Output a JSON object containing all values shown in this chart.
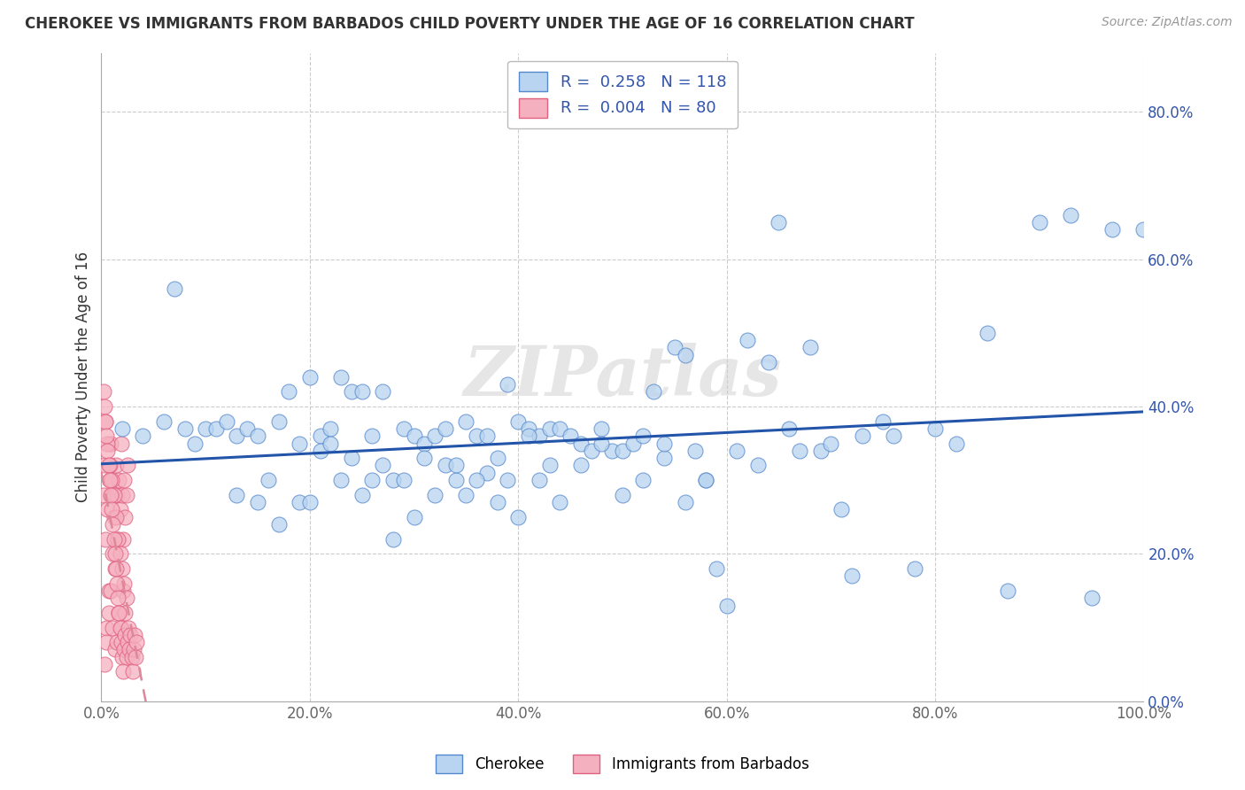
{
  "title": "CHEROKEE VS IMMIGRANTS FROM BARBADOS CHILD POVERTY UNDER THE AGE OF 16 CORRELATION CHART",
  "source": "Source: ZipAtlas.com",
  "ylabel": "Child Poverty Under the Age of 16",
  "watermark": "ZIPatlas",
  "xlim": [
    0.0,
    1.0
  ],
  "ylim": [
    0.0,
    0.88
  ],
  "yticks": [
    0.0,
    0.2,
    0.4,
    0.6,
    0.8
  ],
  "xticks": [
    0.0,
    0.2,
    0.4,
    0.6,
    0.8,
    1.0
  ],
  "cherokee_color": "#b8d4f0",
  "barbados_color": "#f5b0c0",
  "cherokee_edge": "#5588cc",
  "barbados_edge": "#e06080",
  "cherokee_R": 0.258,
  "cherokee_N": 118,
  "barbados_R": 0.004,
  "barbados_N": 80,
  "cherokee_line_color": "#2255aa",
  "barbados_line_color": "#dd8899",
  "legend_cherokee_label": "Cherokee",
  "legend_barbados_label": "Immigrants from Barbados",
  "cherokee_x": [
    0.02,
    0.04,
    0.06,
    0.07,
    0.08,
    0.09,
    0.1,
    0.11,
    0.12,
    0.13,
    0.14,
    0.15,
    0.16,
    0.17,
    0.18,
    0.19,
    0.2,
    0.21,
    0.22,
    0.23,
    0.24,
    0.25,
    0.26,
    0.27,
    0.28,
    0.29,
    0.3,
    0.31,
    0.32,
    0.33,
    0.34,
    0.35,
    0.36,
    0.37,
    0.38,
    0.39,
    0.4,
    0.41,
    0.42,
    0.43,
    0.44,
    0.45,
    0.46,
    0.47,
    0.48,
    0.49,
    0.5,
    0.51,
    0.52,
    0.53,
    0.54,
    0.55,
    0.56,
    0.57,
    0.58,
    0.59,
    0.6,
    0.61,
    0.62,
    0.63,
    0.64,
    0.65,
    0.66,
    0.67,
    0.68,
    0.69,
    0.7,
    0.71,
    0.72,
    0.73,
    0.75,
    0.76,
    0.78,
    0.8,
    0.82,
    0.85,
    0.87,
    0.9,
    0.93,
    0.95,
    0.97,
    1.0,
    0.13,
    0.15,
    0.17,
    0.19,
    0.21,
    0.23,
    0.25,
    0.27,
    0.29,
    0.31,
    0.33,
    0.35,
    0.37,
    0.39,
    0.41,
    0.43,
    0.2,
    0.22,
    0.24,
    0.26,
    0.28,
    0.3,
    0.32,
    0.34,
    0.36,
    0.38,
    0.4,
    0.42,
    0.44,
    0.46,
    0.48,
    0.5,
    0.52,
    0.54,
    0.56,
    0.58
  ],
  "cherokee_y": [
    0.37,
    0.36,
    0.38,
    0.56,
    0.37,
    0.35,
    0.37,
    0.37,
    0.38,
    0.36,
    0.37,
    0.36,
    0.3,
    0.38,
    0.42,
    0.35,
    0.44,
    0.36,
    0.37,
    0.44,
    0.42,
    0.42,
    0.36,
    0.42,
    0.3,
    0.37,
    0.36,
    0.35,
    0.36,
    0.37,
    0.3,
    0.38,
    0.36,
    0.36,
    0.33,
    0.43,
    0.38,
    0.37,
    0.36,
    0.37,
    0.37,
    0.36,
    0.35,
    0.34,
    0.37,
    0.34,
    0.34,
    0.35,
    0.36,
    0.42,
    0.33,
    0.48,
    0.47,
    0.34,
    0.3,
    0.18,
    0.13,
    0.34,
    0.49,
    0.32,
    0.46,
    0.65,
    0.37,
    0.34,
    0.48,
    0.34,
    0.35,
    0.26,
    0.17,
    0.36,
    0.38,
    0.36,
    0.18,
    0.37,
    0.35,
    0.5,
    0.15,
    0.65,
    0.66,
    0.14,
    0.64,
    0.64,
    0.28,
    0.27,
    0.24,
    0.27,
    0.34,
    0.3,
    0.28,
    0.32,
    0.3,
    0.33,
    0.32,
    0.28,
    0.31,
    0.3,
    0.36,
    0.32,
    0.27,
    0.35,
    0.33,
    0.3,
    0.22,
    0.25,
    0.28,
    0.32,
    0.3,
    0.27,
    0.25,
    0.3,
    0.27,
    0.32,
    0.35,
    0.28,
    0.3,
    0.35,
    0.27,
    0.3
  ],
  "barbados_x": [
    0.002,
    0.003,
    0.004,
    0.005,
    0.006,
    0.007,
    0.008,
    0.009,
    0.01,
    0.011,
    0.012,
    0.013,
    0.014,
    0.015,
    0.016,
    0.017,
    0.018,
    0.019,
    0.02,
    0.021,
    0.022,
    0.023,
    0.024,
    0.025,
    0.003,
    0.005,
    0.007,
    0.009,
    0.011,
    0.013,
    0.015,
    0.017,
    0.019,
    0.021,
    0.023,
    0.025,
    0.004,
    0.006,
    0.008,
    0.01,
    0.012,
    0.014,
    0.016,
    0.018,
    0.02,
    0.022,
    0.024,
    0.002,
    0.003,
    0.004,
    0.005,
    0.006,
    0.007,
    0.008,
    0.009,
    0.01,
    0.011,
    0.012,
    0.013,
    0.014,
    0.015,
    0.016,
    0.017,
    0.018,
    0.019,
    0.02,
    0.021,
    0.022,
    0.023,
    0.024,
    0.025,
    0.026,
    0.027,
    0.028,
    0.029,
    0.03,
    0.031,
    0.032,
    0.033,
    0.034
  ],
  "barbados_y": [
    0.28,
    0.32,
    0.22,
    0.1,
    0.26,
    0.15,
    0.3,
    0.35,
    0.28,
    0.2,
    0.25,
    0.18,
    0.32,
    0.28,
    0.22,
    0.3,
    0.26,
    0.35,
    0.28,
    0.22,
    0.3,
    0.25,
    0.28,
    0.32,
    0.05,
    0.08,
    0.12,
    0.15,
    0.1,
    0.07,
    0.08,
    0.12,
    0.1,
    0.15,
    0.12,
    0.08,
    0.38,
    0.35,
    0.32,
    0.3,
    0.28,
    0.25,
    0.22,
    0.2,
    0.18,
    0.16,
    0.14,
    0.42,
    0.4,
    0.38,
    0.36,
    0.34,
    0.32,
    0.3,
    0.28,
    0.26,
    0.24,
    0.22,
    0.2,
    0.18,
    0.16,
    0.14,
    0.12,
    0.1,
    0.08,
    0.06,
    0.04,
    0.07,
    0.09,
    0.06,
    0.08,
    0.1,
    0.07,
    0.09,
    0.06,
    0.04,
    0.07,
    0.09,
    0.06,
    0.08
  ],
  "background_color": "#ffffff",
  "grid_color": "#cccccc"
}
